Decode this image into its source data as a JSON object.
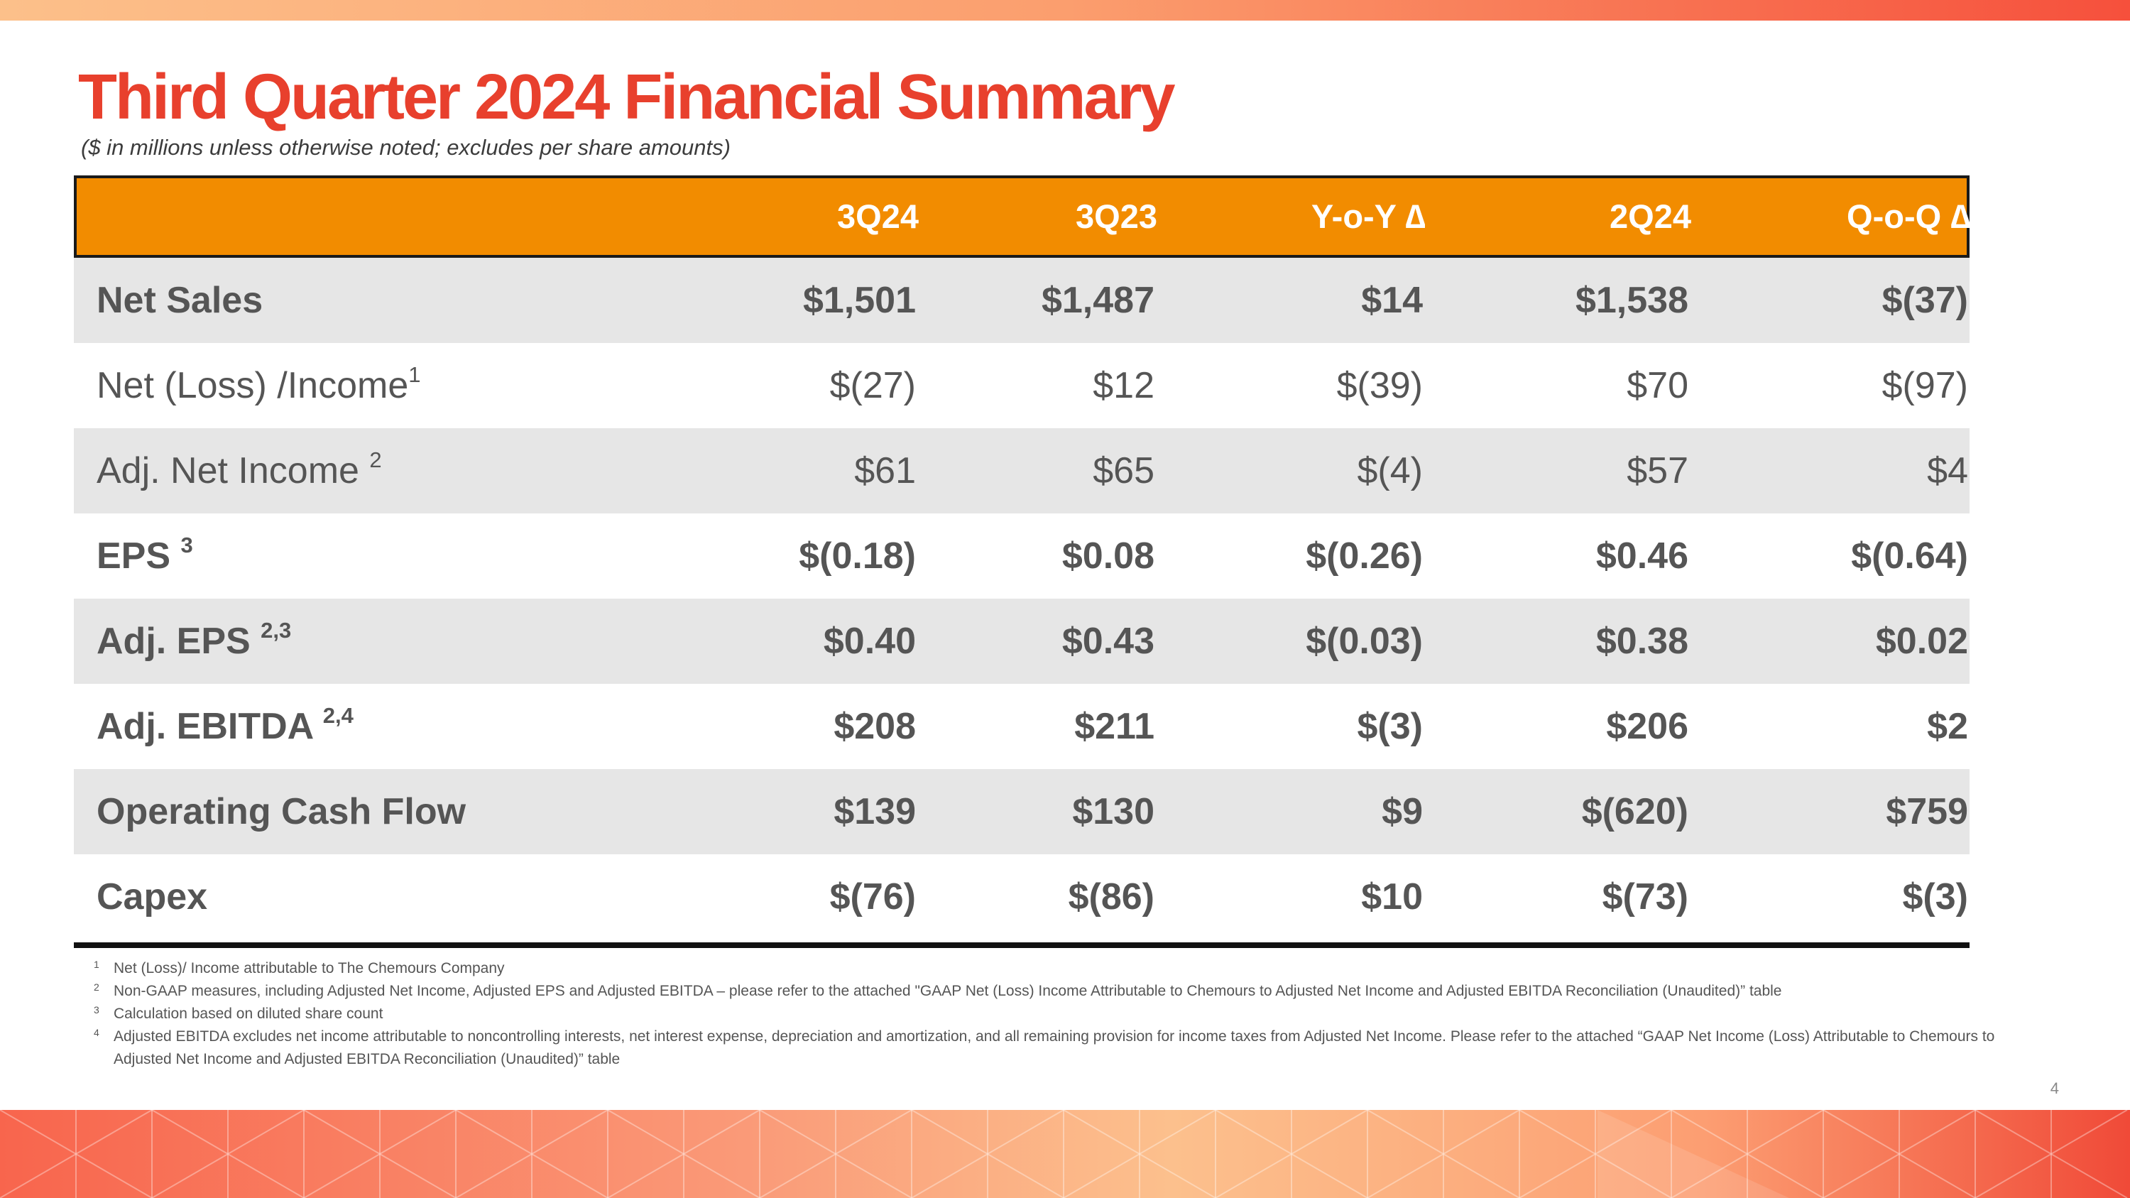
{
  "title": "Third Quarter 2024 Financial Summary",
  "subtitle": "($ in millions unless otherwise noted; excludes per share amounts)",
  "columns": [
    "3Q24",
    "3Q23",
    "Y-o-Y  ∆",
    "2Q24",
    "Q-o-Q ∆"
  ],
  "rows": [
    {
      "label": "Net Sales",
      "note": "",
      "values": [
        "$1,501",
        "$1,487",
        "$14",
        "$1,538",
        "$(37)"
      ]
    },
    {
      "label": "Net (Loss) /Income",
      "note": "1",
      "values": [
        "$(27)",
        "$12",
        "$(39)",
        "$70",
        "$(97)"
      ]
    },
    {
      "label": "Adj. Net Income ",
      "note": "2",
      "values": [
        "$61",
        "$65",
        "$(4)",
        "$57",
        "$4"
      ]
    },
    {
      "label": "EPS ",
      "note": "3",
      "values": [
        "$(0.18)",
        "$0.08",
        "$(0.26)",
        "$0.46",
        "$(0.64)"
      ]
    },
    {
      "label": "Adj. EPS ",
      "note": "2,3",
      "values": [
        "$0.40",
        "$0.43",
        "$(0.03)",
        "$0.38",
        "$0.02"
      ]
    },
    {
      "label": "Adj. EBITDA ",
      "note": "2,4",
      "values": [
        "$208",
        "$211",
        "$(3)",
        "$206",
        "$2"
      ]
    },
    {
      "label": "Operating Cash Flow",
      "note": "",
      "values": [
        "$139",
        "$130",
        "$9",
        "$(620)",
        "$759"
      ]
    },
    {
      "label": "Capex",
      "note": "",
      "values": [
        "$(76)",
        "$(86)",
        "$10",
        "$(73)",
        "$(3)"
      ]
    }
  ],
  "footnotes": [
    {
      "num": "1",
      "text": "Net (Loss)/ Income attributable to The Chemours Company"
    },
    {
      "num": "2",
      "text": "Non-GAAP measures, including Adjusted Net Income, Adjusted EPS and Adjusted EBITDA – please refer to the attached \"GAAP Net (Loss) Income Attributable to Chemours to Adjusted Net Income and Adjusted EBITDA Reconciliation (Unaudited)” table"
    },
    {
      "num": "3",
      "text": "Calculation based on diluted share count"
    },
    {
      "num": "4",
      "text": "Adjusted EBITDA excludes net income attributable to noncontrolling interests, net interest expense, depreciation and amortization, and all remaining provision for income taxes from Adjusted Net Income. Please refer to the attached “GAAP  Net Income (Loss) Attributable to Chemours to Adjusted Net Income and Adjusted EBITDA Reconciliation (Unaudited)” table"
    }
  ],
  "page_number": "4",
  "colors": {
    "title": "#e8402d",
    "header_bg": "#f28c00",
    "row_shade": "#e6e6e6",
    "text": "#555555"
  }
}
